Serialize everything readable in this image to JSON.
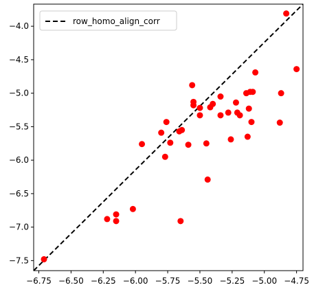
{
  "chart_data": {
    "type": "scatter",
    "title": "",
    "xlabel": "",
    "ylabel": "",
    "xlim": [
      -6.79,
      -4.7
    ],
    "ylim": [
      -7.65,
      -3.67
    ],
    "xticks": [
      -6.75,
      -6.5,
      -6.25,
      -6.0,
      -5.75,
      -5.5,
      -5.25,
      -5.0,
      -4.75
    ],
    "xtick_labels": [
      "−6.75",
      "−6.50",
      "−6.25",
      "−6.00",
      "−5.75",
      "−5.50",
      "−5.25",
      "−5.00",
      "−4.75"
    ],
    "yticks": [
      -7.5,
      -7.0,
      -6.5,
      -6.0,
      -5.5,
      -5.0,
      -4.5,
      -4.0
    ],
    "ytick_labels": [
      "−7.5",
      "−7.0",
      "−6.5",
      "−6.0",
      "−5.5",
      "−5.0",
      "−4.5",
      "−4.0"
    ],
    "grid": false,
    "legend": {
      "location": "upper-left",
      "entries": [
        {
          "label": "row_homo_align_corr",
          "style": "dashed-line",
          "color": "#000000"
        }
      ]
    },
    "reference_line": {
      "name": "row_homo_align_corr",
      "style": "dashed",
      "color": "#000000",
      "x": [
        -6.79,
        -4.7
      ],
      "y": [
        -7.65,
        -3.67
      ]
    },
    "series": [
      {
        "marker": "circle",
        "color": "#ff0000",
        "x": [
          -6.71,
          -6.22,
          -6.15,
          -6.15,
          -6.02,
          -5.95,
          -5.8,
          -5.77,
          -5.76,
          -5.73,
          -5.66,
          -5.64,
          -5.59,
          -5.65,
          -5.56,
          -5.55,
          -5.55,
          -5.5,
          -5.5,
          -5.45,
          -5.44,
          -5.42,
          -5.4,
          -5.34,
          -5.34,
          -5.28,
          -5.26,
          -5.22,
          -5.21,
          -5.19,
          -5.14,
          -5.13,
          -5.12,
          -5.11,
          -5.1,
          -5.09,
          -5.07,
          -4.88,
          -4.87,
          -4.83,
          -4.75
        ],
        "y": [
          -7.48,
          -6.88,
          -6.81,
          -6.91,
          -6.73,
          -5.76,
          -5.59,
          -5.95,
          -5.43,
          -5.74,
          -5.57,
          -5.55,
          -5.77,
          -6.91,
          -4.88,
          -5.13,
          -5.18,
          -5.33,
          -5.22,
          -5.75,
          -6.29,
          -5.21,
          -5.16,
          -5.05,
          -5.33,
          -5.29,
          -5.69,
          -5.14,
          -5.29,
          -5.33,
          -5.0,
          -5.65,
          -5.23,
          -4.98,
          -5.43,
          -4.98,
          -4.69,
          -5.44,
          -5.0,
          -3.81,
          -4.64
        ]
      }
    ]
  }
}
